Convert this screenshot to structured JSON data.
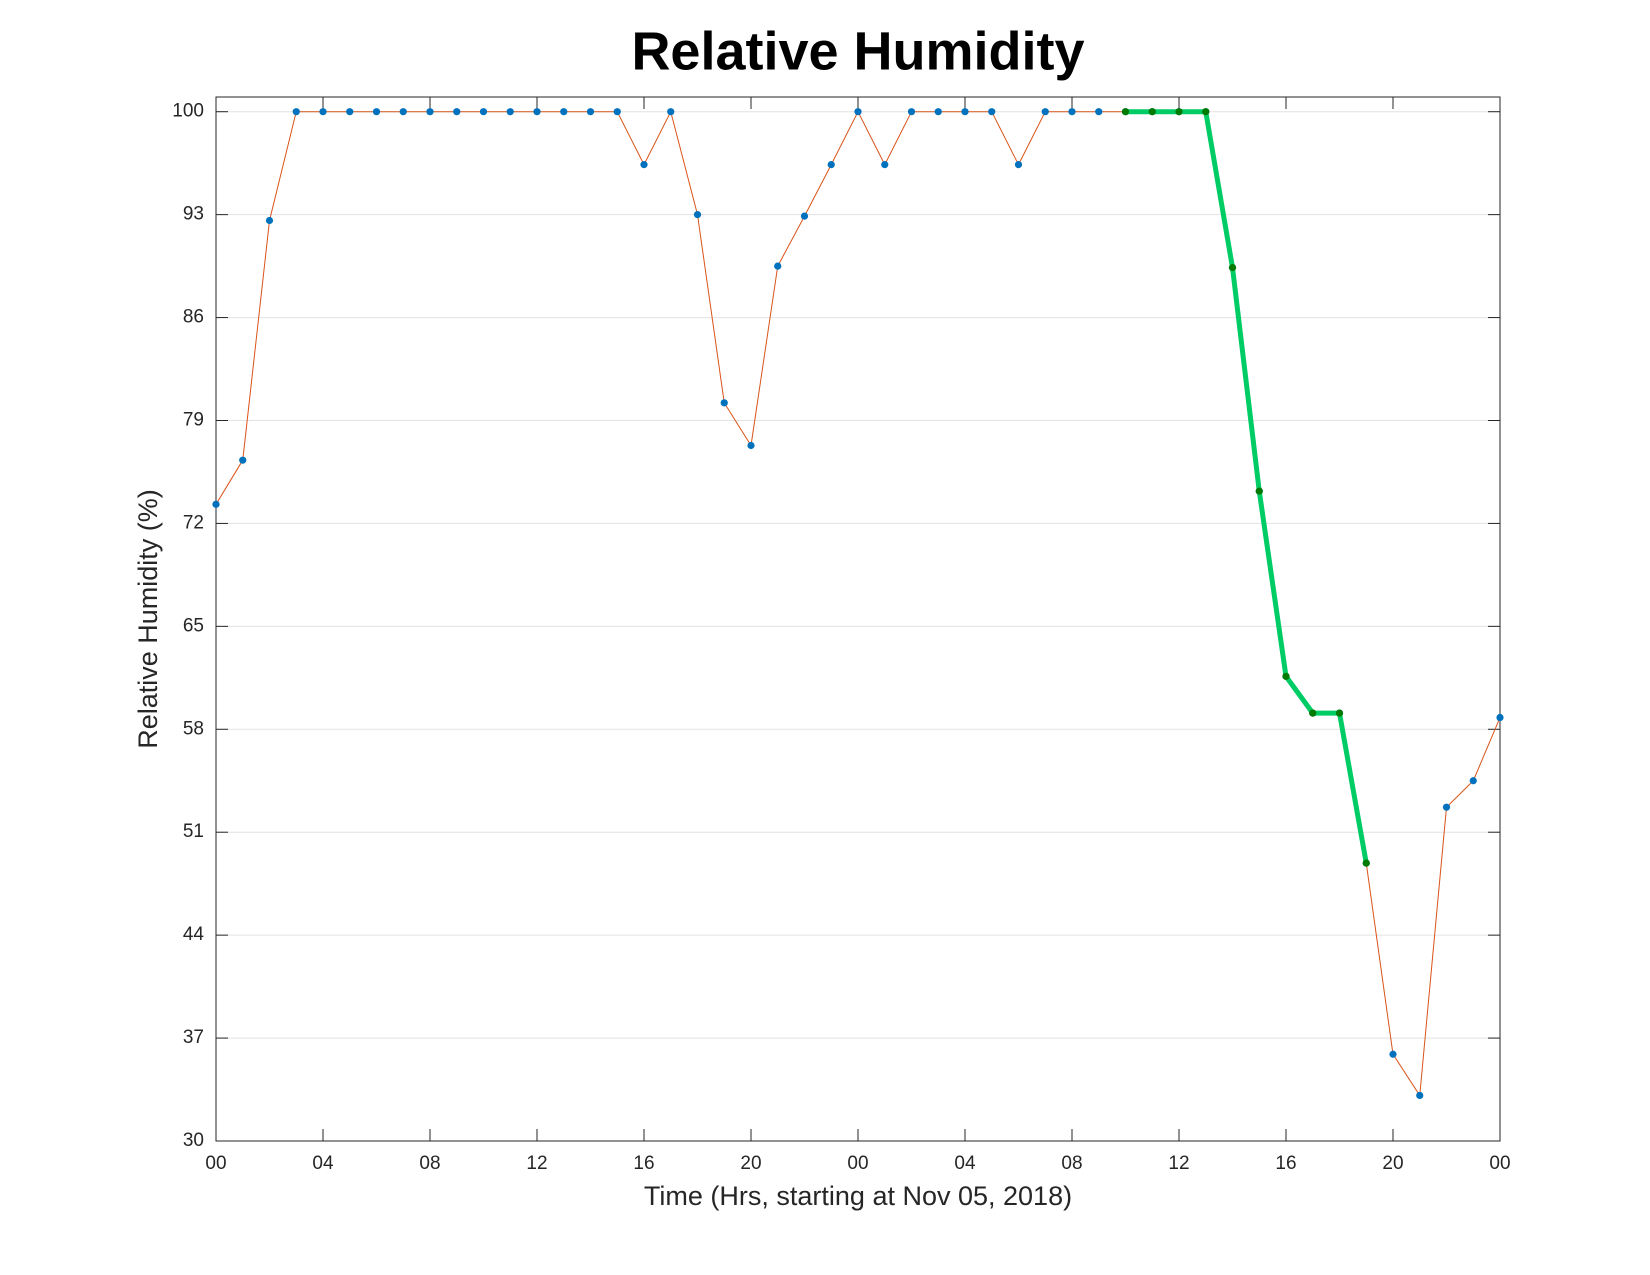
{
  "chart_data": {
    "type": "line",
    "title": "Relative Humidity",
    "xlabel": "Time (Hrs, starting at Nov 05, 2018)",
    "ylabel": "Relative Humidity (%)",
    "x": [
      0,
      1,
      2,
      3,
      4,
      5,
      6,
      7,
      8,
      9,
      10,
      11,
      12,
      13,
      14,
      15,
      16,
      17,
      18,
      19,
      20,
      21,
      22,
      23,
      24,
      25,
      26,
      27,
      28,
      29,
      30,
      31,
      32,
      33,
      34,
      35,
      36,
      37,
      38,
      39,
      40,
      41,
      42,
      43,
      44,
      45,
      46,
      47,
      48
    ],
    "series": [
      {
        "color": "#d95319",
        "marker_color": "#0072bd",
        "line_width": 1,
        "values": [
          73.3,
          76.3,
          92.6,
          100,
          100,
          100,
          100,
          100,
          100,
          100,
          100,
          100,
          100,
          100,
          100,
          100,
          96.4,
          100,
          93.0,
          80.2,
          77.3,
          89.5,
          92.9,
          96.4,
          100,
          96.4,
          100,
          100,
          100,
          100,
          96.4,
          100,
          100,
          100,
          100,
          100,
          100,
          100,
          89.4,
          74.2,
          61.6,
          59.1,
          59.1,
          48.9,
          35.9,
          33.1,
          52.7,
          54.5,
          58.8
        ]
      },
      {
        "color": "#00cc66",
        "marker_color": "#007a00",
        "line_width": 5,
        "values": [
          null,
          null,
          null,
          null,
          null,
          null,
          null,
          null,
          null,
          null,
          null,
          null,
          null,
          null,
          null,
          null,
          null,
          null,
          null,
          null,
          null,
          null,
          null,
          null,
          null,
          null,
          null,
          null,
          null,
          null,
          null,
          null,
          null,
          null,
          100,
          100,
          100,
          100,
          89.4,
          74.2,
          61.6,
          59.1,
          59.1,
          48.9,
          null,
          null,
          null,
          null,
          null
        ]
      }
    ],
    "xlim": [
      0,
      48
    ],
    "xticks": [
      {
        "value": 0,
        "label": "00"
      },
      {
        "value": 4,
        "label": "04"
      },
      {
        "value": 8,
        "label": "08"
      },
      {
        "value": 12,
        "label": "12"
      },
      {
        "value": 16,
        "label": "16"
      },
      {
        "value": 20,
        "label": "20"
      },
      {
        "value": 24,
        "label": "00"
      },
      {
        "value": 28,
        "label": "04"
      },
      {
        "value": 32,
        "label": "08"
      },
      {
        "value": 36,
        "label": "12"
      },
      {
        "value": 40,
        "label": "16"
      },
      {
        "value": 44,
        "label": "20"
      },
      {
        "value": 48,
        "label": "00"
      }
    ],
    "ylim": [
      30,
      101
    ],
    "yticks": [
      30,
      37,
      44,
      51,
      58,
      65,
      72,
      79,
      86,
      93,
      100
    ],
    "grid": true
  }
}
